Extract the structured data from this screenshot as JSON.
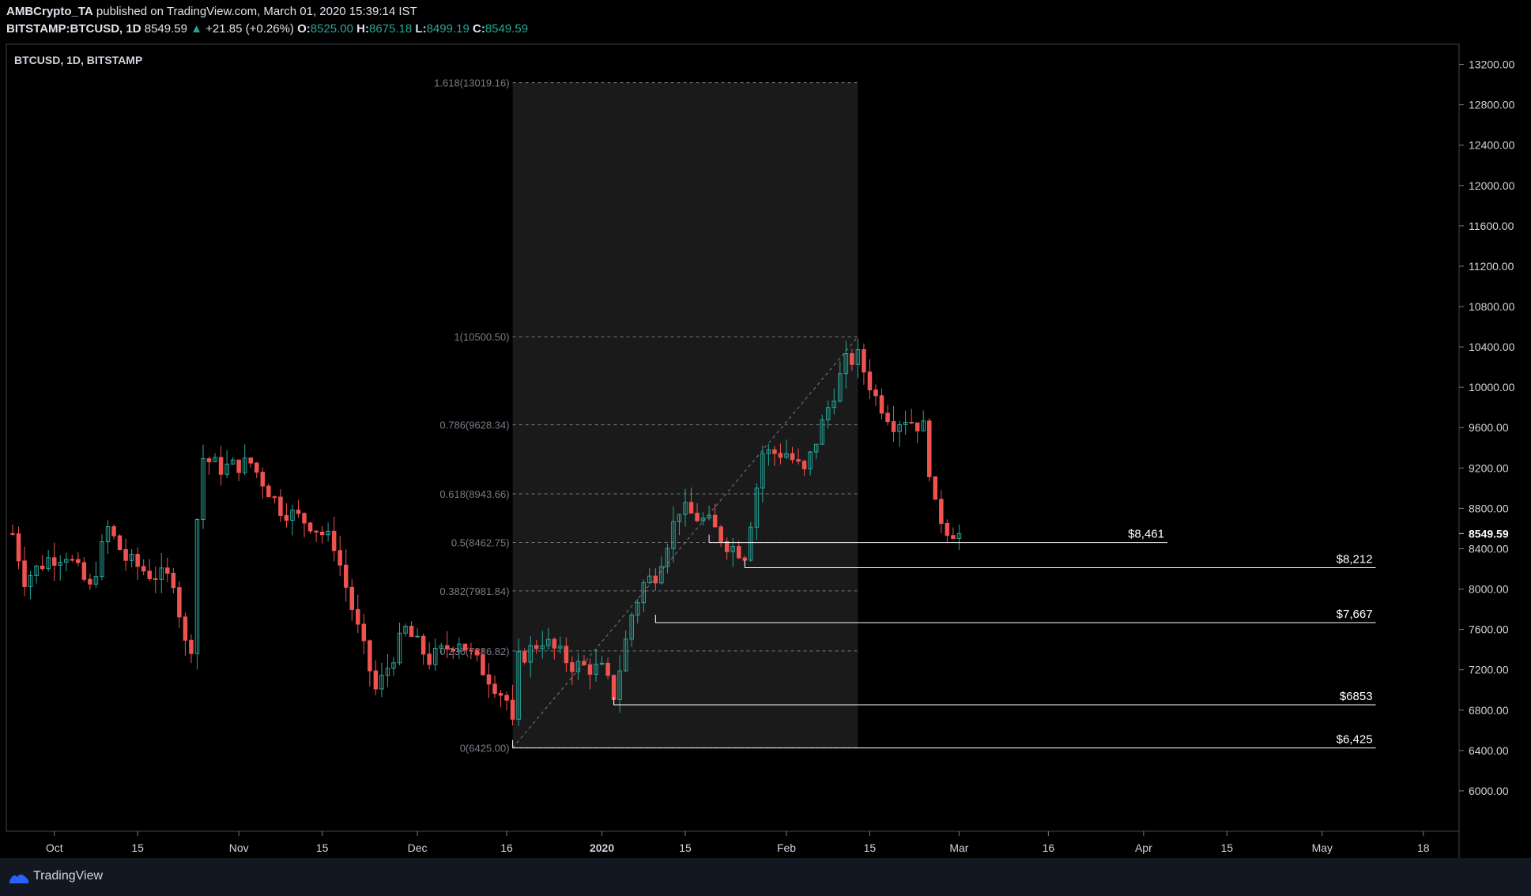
{
  "header": {
    "author": "AMBCrypto_TA",
    "published_text": "published on TradingView.com, March 01, 2020 15:39:14 IST",
    "symbol": "BITSTAMP:BTCUSD, 1D",
    "last": "8549.59",
    "change": "+21.85 (+0.26%)",
    "o_label": "O:",
    "o": "8525.00",
    "h_label": "H:",
    "h": "8675.18",
    "l_label": "L:",
    "l": "8499.19",
    "c_label": "C:",
    "c": "8549.59"
  },
  "footer": {
    "brand": "TradingView"
  },
  "chart_data": {
    "type": "candlestick",
    "title": "BTCUSD, 1D, BITSTAMP",
    "ylim": [
      5600,
      13400
    ],
    "y_ticks": [
      6000,
      6400,
      6800,
      7200,
      7600,
      8000,
      8400,
      8800,
      9200,
      9600,
      10000,
      10400,
      10800,
      11200,
      11600,
      12000,
      12400,
      12800,
      13200
    ],
    "y_tick_labels": [
      "6000.00",
      "6400.00",
      "6800.00",
      "7200.00",
      "7600.00",
      "8000.00",
      "8400.00",
      "8800.00",
      "9200.00",
      "9600.00",
      "10000.00",
      "10400.00",
      "10800.00",
      "11200.00",
      "11600.00",
      "12000.00",
      "12400.00",
      "12800.00",
      "13200.00"
    ],
    "last_price_label": "8549.59",
    "x_range": [
      "2019-09-24",
      "2020-05-24"
    ],
    "x_ticks": [
      {
        "date": "2019-10-01",
        "label": "Oct"
      },
      {
        "date": "2019-10-15",
        "label": "15"
      },
      {
        "date": "2019-11-01",
        "label": "Nov"
      },
      {
        "date": "2019-11-15",
        "label": "15"
      },
      {
        "date": "2019-12-01",
        "label": "Dec"
      },
      {
        "date": "2019-12-16",
        "label": "16"
      },
      {
        "date": "2020-01-01",
        "label": "2020",
        "bold": true
      },
      {
        "date": "2020-01-15",
        "label": "15"
      },
      {
        "date": "2020-02-01",
        "label": "Feb"
      },
      {
        "date": "2020-02-15",
        "label": "15"
      },
      {
        "date": "2020-03-01",
        "label": "Mar"
      },
      {
        "date": "2020-03-16",
        "label": "16"
      },
      {
        "date": "2020-04-01",
        "label": "Apr"
      },
      {
        "date": "2020-04-15",
        "label": "15"
      },
      {
        "date": "2020-05-01",
        "label": "May"
      },
      {
        "date": "2020-05-18",
        "label": "18"
      }
    ],
    "anchors": [
      {
        "date": "2019-09-24",
        "close": 8550
      },
      {
        "date": "2019-09-26",
        "close": 8100
      },
      {
        "date": "2019-09-30",
        "close": 8300
      },
      {
        "date": "2019-10-03",
        "close": 8350
      },
      {
        "date": "2019-10-07",
        "close": 8000
      },
      {
        "date": "2019-10-10",
        "close": 8600
      },
      {
        "date": "2019-10-13",
        "close": 8300
      },
      {
        "date": "2019-10-17",
        "close": 8150
      },
      {
        "date": "2019-10-21",
        "close": 8100
      },
      {
        "date": "2019-10-23",
        "close": 7450
      },
      {
        "date": "2019-10-24",
        "close": 7450
      },
      {
        "date": "2019-10-25",
        "close": 8700
      },
      {
        "date": "2019-10-26",
        "close": 9300
      },
      {
        "date": "2019-10-29",
        "close": 9200
      },
      {
        "date": "2019-11-03",
        "close": 9250
      },
      {
        "date": "2019-11-08",
        "close": 8800
      },
      {
        "date": "2019-11-13",
        "close": 8650
      },
      {
        "date": "2019-11-17",
        "close": 8450
      },
      {
        "date": "2019-11-21",
        "close": 7600
      },
      {
        "date": "2019-11-24",
        "close": 7000
      },
      {
        "date": "2019-11-25",
        "close": 7100
      },
      {
        "date": "2019-11-29",
        "close": 7600
      },
      {
        "date": "2019-12-03",
        "close": 7300
      },
      {
        "date": "2019-12-08",
        "close": 7500
      },
      {
        "date": "2019-12-12",
        "close": 7200
      },
      {
        "date": "2019-12-16",
        "close": 6900
      },
      {
        "date": "2019-12-17",
        "close": 6640
      },
      {
        "date": "2019-12-18",
        "close": 7300
      },
      {
        "date": "2019-12-22",
        "close": 7500
      },
      {
        "date": "2019-12-27",
        "close": 7250
      },
      {
        "date": "2020-01-01",
        "close": 7200
      },
      {
        "date": "2020-01-03",
        "close": 6950
      },
      {
        "date": "2020-01-06",
        "close": 7750
      },
      {
        "date": "2020-01-08",
        "close": 8050
      },
      {
        "date": "2020-01-10",
        "close": 8150
      },
      {
        "date": "2020-01-14",
        "close": 8800
      },
      {
        "date": "2020-01-19",
        "close": 8650
      },
      {
        "date": "2020-01-22",
        "close": 8450
      },
      {
        "date": "2020-01-25",
        "close": 8350
      },
      {
        "date": "2020-01-28",
        "close": 9350
      },
      {
        "date": "2020-02-01",
        "close": 9350
      },
      {
        "date": "2020-02-04",
        "close": 9150
      },
      {
        "date": "2020-02-08",
        "close": 9800
      },
      {
        "date": "2020-02-11",
        "close": 10250
      },
      {
        "date": "2020-02-13",
        "close": 10300
      },
      {
        "date": "2020-02-16",
        "close": 9900
      },
      {
        "date": "2020-02-19",
        "close": 9650
      },
      {
        "date": "2020-02-21",
        "close": 9700
      },
      {
        "date": "2020-02-24",
        "close": 9600
      },
      {
        "date": "2020-02-26",
        "close": 8800
      },
      {
        "date": "2020-02-28",
        "close": 8600
      },
      {
        "date": "2020-03-01",
        "close": 8549.59
      }
    ],
    "fib": {
      "start_date": "2019-12-17",
      "end_date": "2020-02-13",
      "levels": [
        {
          "ratio": "1.618",
          "value": 13019.16,
          "label": "1.618(13019.16)"
        },
        {
          "ratio": "1",
          "value": 10500.5,
          "label": "1(10500.50)"
        },
        {
          "ratio": "0.786",
          "value": 9628.34,
          "label": "0.786(9628.34)"
        },
        {
          "ratio": "0.618",
          "value": 8943.66,
          "label": "0.618(8943.66)"
        },
        {
          "ratio": "0.5",
          "value": 8462.75,
          "label": "0.5(8462.75)"
        },
        {
          "ratio": "0.382",
          "value": 7981.84,
          "label": "0.382(7981.84)"
        },
        {
          "ratio": "0.236",
          "value": 7386.82,
          "label": "0.236(7386.82)"
        },
        {
          "ratio": "0",
          "value": 6425.0,
          "label": "0(6425.00)"
        }
      ]
    },
    "support_lines": [
      {
        "value": 8461,
        "label": "$8,461",
        "start": "2020-01-19",
        "end": "2020-04-05"
      },
      {
        "value": 8212,
        "label": "$8,212",
        "start": "2020-01-25",
        "end": "2020-05-10"
      },
      {
        "value": 7667,
        "label": "$7,667",
        "start": "2020-01-10",
        "end": "2020-05-10"
      },
      {
        "value": 6853,
        "label": "$6853",
        "start": "2020-01-03",
        "end": "2020-05-10"
      },
      {
        "value": 6425,
        "label": "$6,425",
        "start": "2019-12-17",
        "end": "2020-05-10"
      }
    ],
    "colors": {
      "up": "#26a69a",
      "down": "#ef5350",
      "background": "#000000",
      "fib_zone": "#1a1a1a",
      "line": "#ffffff"
    }
  }
}
